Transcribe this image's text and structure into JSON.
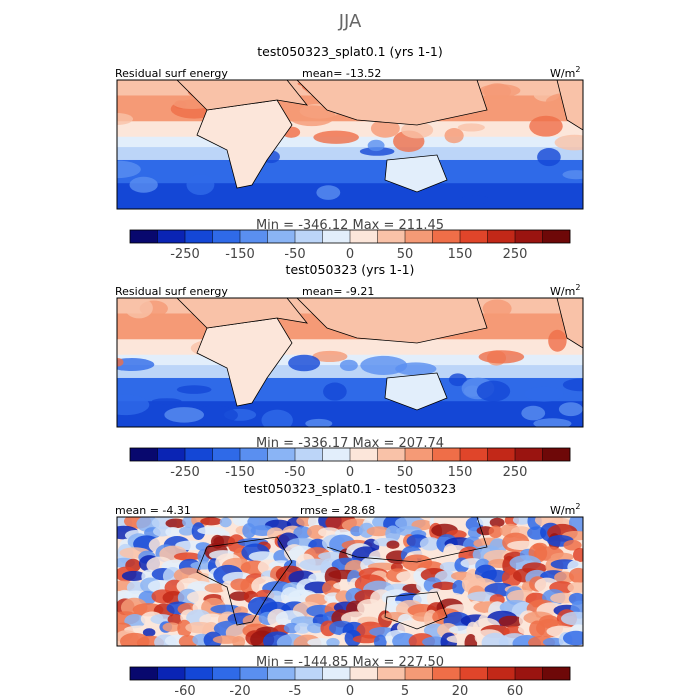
{
  "figure": {
    "season": "JJA"
  },
  "panels": [
    {
      "title": "test050323_splat0.1 (yrs 1-1)",
      "left_label": "Residual surf energy",
      "center_label": "mean= -13.52",
      "units_base": "W/m",
      "units_exp": "2",
      "minmax": "Min = -346.12 Max = 211.45",
      "colorbar_ticks": [
        "-250",
        "-150",
        "-50",
        "0",
        "50",
        "150",
        "250"
      ],
      "colors": [
        "#08086e",
        "#0a24b4",
        "#1447d6",
        "#2f6ae8",
        "#5a8ff0",
        "#8ab4f5",
        "#bcd5f8",
        "#e2eefb",
        "#fce6da",
        "#f9c2a8",
        "#f59a76",
        "#ef6e48",
        "#e0452a",
        "#c22818",
        "#9a1410",
        "#6e0808"
      ],
      "mean": -13.52,
      "min": -346.12,
      "max": 211.45
    },
    {
      "title": "test050323 (yrs 1-1)",
      "left_label": "Residual surf energy",
      "center_label": "mean= -9.21",
      "units_base": "W/m",
      "units_exp": "2",
      "minmax": "Min = -336.17 Max = 207.74",
      "colorbar_ticks": [
        "-250",
        "-150",
        "-50",
        "0",
        "50",
        "150",
        "250"
      ],
      "colors": [
        "#08086e",
        "#0a24b4",
        "#1447d6",
        "#2f6ae8",
        "#5a8ff0",
        "#8ab4f5",
        "#bcd5f8",
        "#e2eefb",
        "#fce6da",
        "#f9c2a8",
        "#f59a76",
        "#ef6e48",
        "#e0452a",
        "#c22818",
        "#9a1410",
        "#6e0808"
      ],
      "mean": -9.21,
      "min": -336.17,
      "max": 207.74
    },
    {
      "title": "test050323_splat0.1 - test050323",
      "left_label": "mean = -4.31",
      "center_label": "rmse = 28.68",
      "units_base": "W/m",
      "units_exp": "2",
      "minmax": "Min = -144.85 Max = 227.50",
      "colorbar_ticks": [
        "-60",
        "-20",
        "-5",
        "0",
        "5",
        "20",
        "60"
      ],
      "colors": [
        "#08086e",
        "#0a24b4",
        "#1447d6",
        "#2f6ae8",
        "#5a8ff0",
        "#8ab4f5",
        "#bcd5f8",
        "#e2eefb",
        "#fce6da",
        "#f9c2a8",
        "#f59a76",
        "#ef6e48",
        "#e0452a",
        "#c22818",
        "#9a1410",
        "#6e0808"
      ],
      "mean": -4.31,
      "rmse": 28.68,
      "min": -144.85,
      "max": 227.5
    }
  ],
  "chart_data": [
    {
      "type": "heatmap",
      "title": "test050323_splat0.1 (yrs 1-1)",
      "variable": "Residual surf energy",
      "units": "W/m2",
      "mean": -13.52,
      "min": -346.12,
      "max": 211.45,
      "colorbar_ticks": [
        -250,
        -150,
        -50,
        0,
        50,
        150,
        250
      ]
    },
    {
      "type": "heatmap",
      "title": "test050323 (yrs 1-1)",
      "variable": "Residual surf energy",
      "units": "W/m2",
      "mean": -9.21,
      "min": -336.17,
      "max": 207.74,
      "colorbar_ticks": [
        -250,
        -150,
        -50,
        0,
        50,
        150,
        250
      ]
    },
    {
      "type": "heatmap",
      "title": "test050323_splat0.1 - test050323",
      "units": "W/m2",
      "mean": -4.31,
      "rmse": 28.68,
      "min": -144.85,
      "max": 227.5,
      "colorbar_ticks": [
        -60,
        -20,
        -5,
        0,
        5,
        20,
        60
      ]
    }
  ]
}
